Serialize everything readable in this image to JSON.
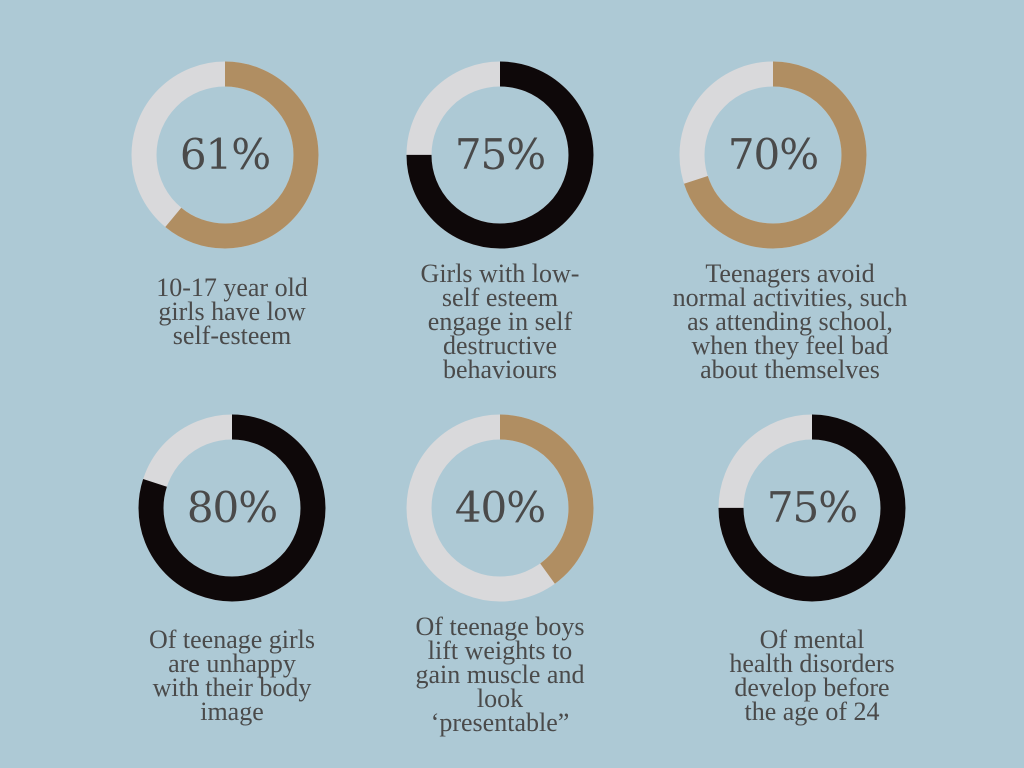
{
  "colors": {
    "background": "#adc9d5",
    "track": "#d9d9db",
    "tan": "#b08e62",
    "black": "#0e0809",
    "text": "#4a4a4a"
  },
  "chart_data": {
    "type": "pie",
    "variant": "donut",
    "items": [
      {
        "value": 61,
        "label": "61%",
        "color_key": "tan",
        "caption": "10-17 year old\ngirls have low\nself-esteem"
      },
      {
        "value": 75,
        "label": "75%",
        "color_key": "black",
        "caption": "Girls with low-\nself esteem\nengage in self\ndestructive\nbehaviours"
      },
      {
        "value": 70,
        "label": "70%",
        "color_key": "tan",
        "caption": "Teenagers avoid\nnormal activities, such\nas attending school,\nwhen they feel bad\nabout themselves"
      },
      {
        "value": 80,
        "label": "80%",
        "color_key": "black",
        "caption": "Of teenage girls\nare unhappy\nwith their body\nimage"
      },
      {
        "value": 40,
        "label": "40%",
        "color_key": "tan",
        "caption": "Of teenage boys\nlift weights to\ngain muscle and\nlook\n‘presentable”"
      },
      {
        "value": 75,
        "label": "75%",
        "color_key": "black",
        "caption": "Of mental\nhealth disorders\ndevelop before\nthe age of 24"
      }
    ]
  }
}
